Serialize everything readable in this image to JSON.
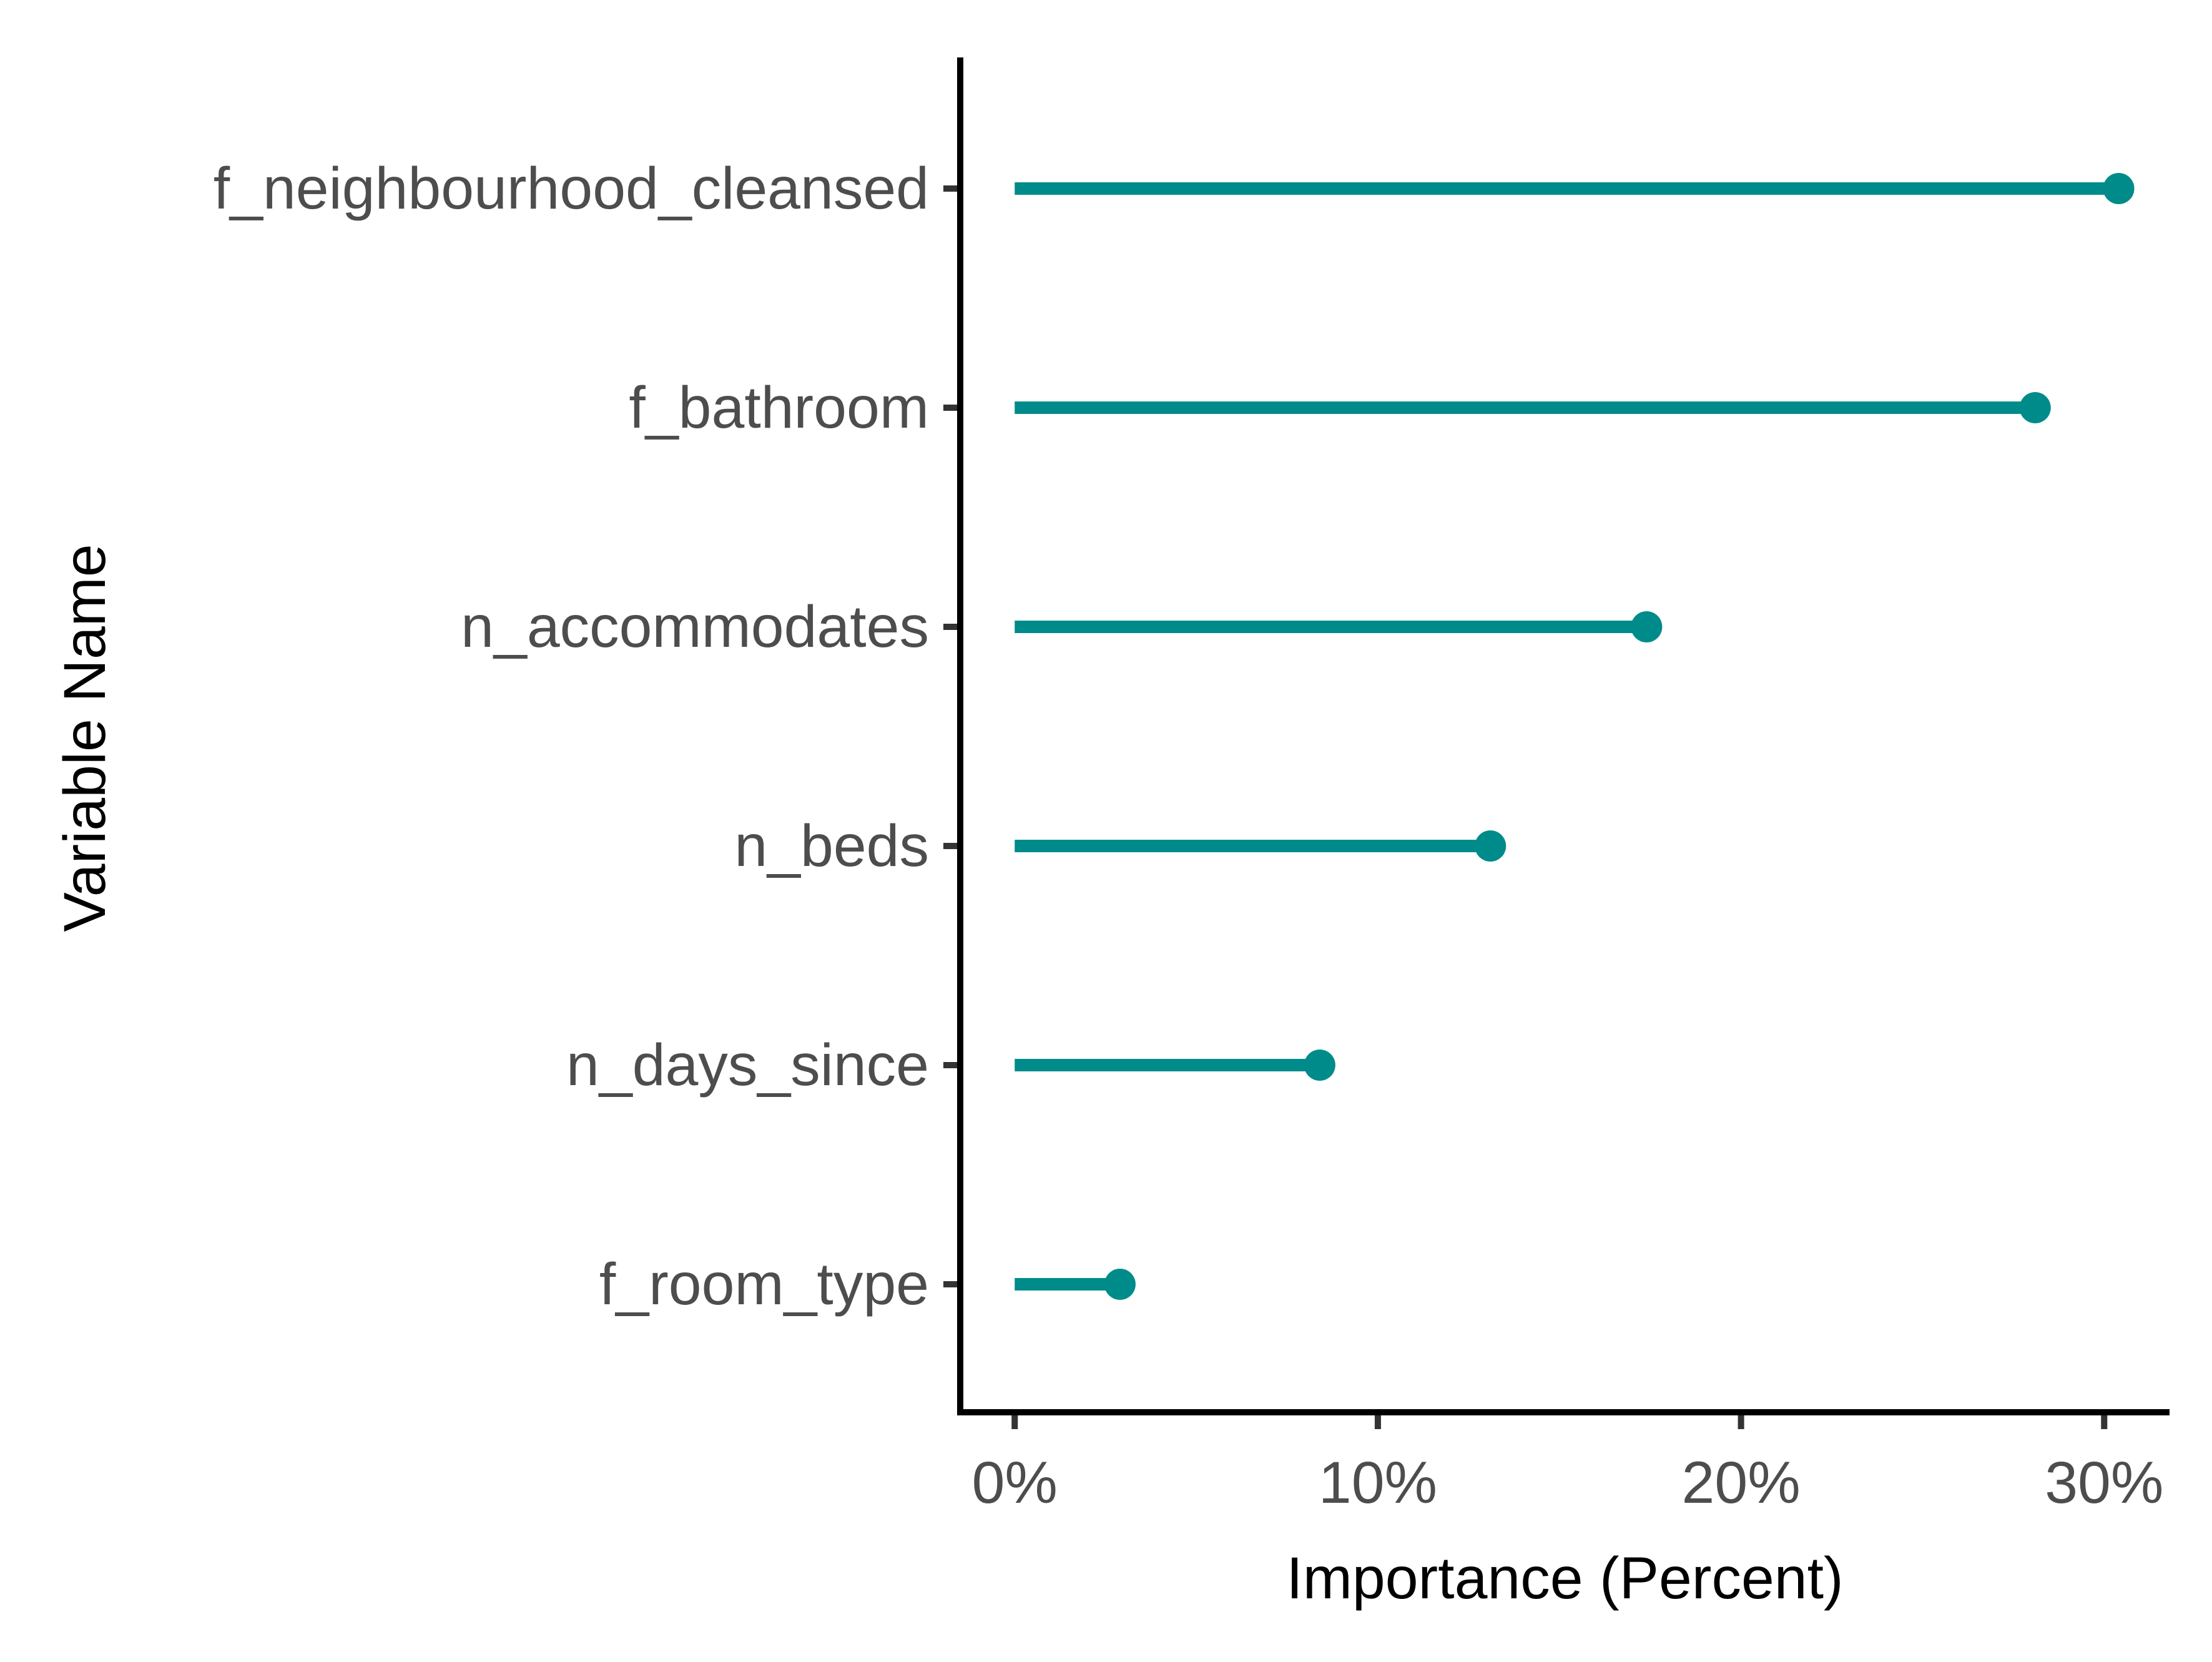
{
  "chart_data": {
    "type": "lollipop",
    "orientation": "horizontal",
    "xlabel": "Importance (Percent)",
    "ylabel": "Variable Name",
    "categories": [
      "f_neighbourhood_cleansed",
      "f_bathroom",
      "n_accommodates",
      "n_beds",
      "n_days_since",
      "f_room_type"
    ],
    "values": [
      30.4,
      28.1,
      17.4,
      13.1,
      8.4,
      2.9
    ],
    "xticks": [
      0,
      10,
      20,
      30
    ],
    "xtick_labels": [
      "0%",
      "10%",
      "20%",
      "30%"
    ],
    "xlim": [
      -1.5,
      31.8
    ],
    "grid": false,
    "legend": "none",
    "colors": {
      "series": "#008b8b",
      "axis": "#000000",
      "tick": "#333333",
      "tick_label": "#4d4d4d"
    }
  }
}
